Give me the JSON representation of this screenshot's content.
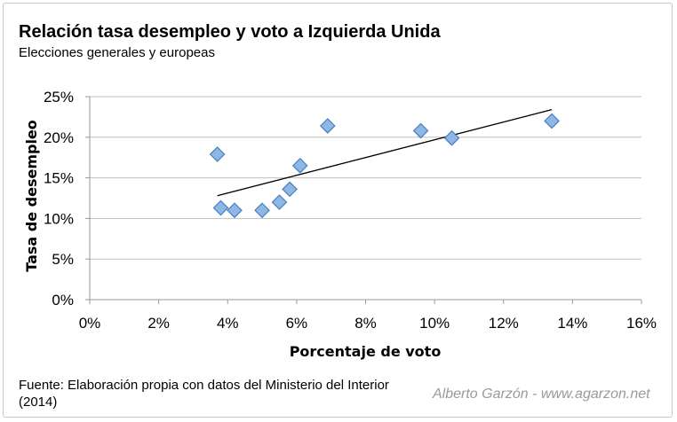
{
  "chart_data": {
    "type": "scatter",
    "title": "Relación tasa desempleo y voto a Izquierda Unida",
    "subtitle": "Elecciones generales y europeas",
    "xlabel": "Porcentaje de voto",
    "ylabel": "Tasa de desempleo",
    "xlim": [
      0,
      16
    ],
    "ylim": [
      0,
      25
    ],
    "x_ticks": [
      "0%",
      "2%",
      "4%",
      "6%",
      "8%",
      "10%",
      "12%",
      "14%",
      "16%"
    ],
    "y_ticks": [
      "0%",
      "5%",
      "10%",
      "15%",
      "20%",
      "25%"
    ],
    "grid": "horizontal",
    "marker": "diamond",
    "colors": {
      "marker_fill": "#8db8e6",
      "marker_stroke": "#4a7ebb",
      "trendline": "#000000",
      "grid": "#bfbfbf"
    },
    "points": [
      {
        "x": 3.7,
        "y": 17.9
      },
      {
        "x": 3.8,
        "y": 11.3
      },
      {
        "x": 4.2,
        "y": 11.0
      },
      {
        "x": 5.0,
        "y": 11.0
      },
      {
        "x": 5.5,
        "y": 12.0
      },
      {
        "x": 5.8,
        "y": 13.6
      },
      {
        "x": 6.1,
        "y": 16.5
      },
      {
        "x": 6.9,
        "y": 21.4
      },
      {
        "x": 9.6,
        "y": 20.8
      },
      {
        "x": 10.5,
        "y": 19.9
      },
      {
        "x": 13.4,
        "y": 22.0
      }
    ],
    "trendline": {
      "x": [
        3.7,
        13.4
      ],
      "y": [
        12.8,
        23.4
      ]
    },
    "source": "Fuente: Elaboración propia con datos del Ministerio del Interior (2014)",
    "credit": "Alberto Garzón - www.agarzon.net"
  }
}
